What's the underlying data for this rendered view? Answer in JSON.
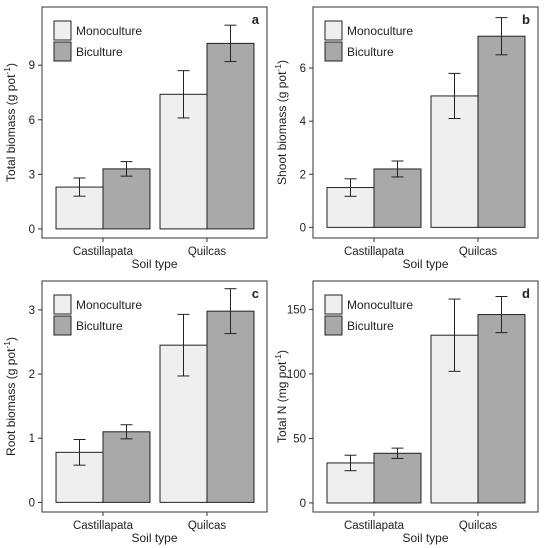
{
  "chart_data": [
    {
      "type": "bar",
      "panel_label": "a",
      "ylabel": "Total biomass (g pot",
      "ylabel_sup": "-1",
      "ylabel_close": ")",
      "xlabel": "Soil type",
      "categories": [
        "Castillapata",
        "Quilcas"
      ],
      "series": [
        {
          "name": "Monoculture",
          "values": [
            2.3,
            7.4
          ],
          "errors": [
            0.5,
            1.3
          ]
        },
        {
          "name": "Biculture",
          "values": [
            3.3,
            10.2
          ],
          "errors": [
            0.4,
            1.0
          ]
        }
      ],
      "ylim": [
        -0.5,
        12.2
      ],
      "yticks": [
        0,
        3,
        6,
        9
      ],
      "legend": "top-left"
    },
    {
      "type": "bar",
      "panel_label": "b",
      "ylabel": "Shoot biomass (g pot",
      "ylabel_sup": "-1",
      "ylabel_close": ")",
      "xlabel": "Soil type",
      "categories": [
        "Castillapata",
        "Quilcas"
      ],
      "series": [
        {
          "name": "Monoculture",
          "values": [
            1.5,
            4.95
          ],
          "errors": [
            0.33,
            0.85
          ]
        },
        {
          "name": "Biculture",
          "values": [
            2.2,
            7.2
          ],
          "errors": [
            0.3,
            0.7
          ]
        }
      ],
      "ylim": [
        -0.4,
        8.3
      ],
      "yticks": [
        0,
        2,
        4,
        6
      ],
      "legend": "top-left"
    },
    {
      "type": "bar",
      "panel_label": "c",
      "ylabel": "Root biomass (g pot",
      "ylabel_sup": "-1",
      "ylabel_close": ")",
      "xlabel": "Soil type",
      "categories": [
        "Castillapata",
        "Quilcas"
      ],
      "series": [
        {
          "name": "Monoculture",
          "values": [
            0.78,
            2.45
          ],
          "errors": [
            0.2,
            0.48
          ]
        },
        {
          "name": "Biculture",
          "values": [
            1.1,
            2.98
          ],
          "errors": [
            0.11,
            0.35
          ]
        }
      ],
      "ylim": [
        -0.15,
        3.45
      ],
      "yticks": [
        0,
        1,
        2,
        3
      ],
      "legend": "top-left"
    },
    {
      "type": "bar",
      "panel_label": "d",
      "ylabel": "Total N (mg pot",
      "ylabel_sup": "-1",
      "ylabel_close": ")",
      "xlabel": "Soil type",
      "categories": [
        "Castillapata",
        "Quilcas"
      ],
      "series": [
        {
          "name": "Monoculture",
          "values": [
            31,
            130
          ],
          "errors": [
            6,
            28
          ]
        },
        {
          "name": "Biculture",
          "values": [
            38.5,
            146
          ],
          "errors": [
            4,
            14
          ]
        }
      ],
      "ylim": [
        -7,
        172
      ],
      "yticks": [
        0,
        50,
        100,
        150
      ],
      "legend": "top-left"
    }
  ],
  "colors": {
    "Monoculture": "#efefef",
    "Biculture": "#a9a9a9",
    "frame": "#333333"
  }
}
